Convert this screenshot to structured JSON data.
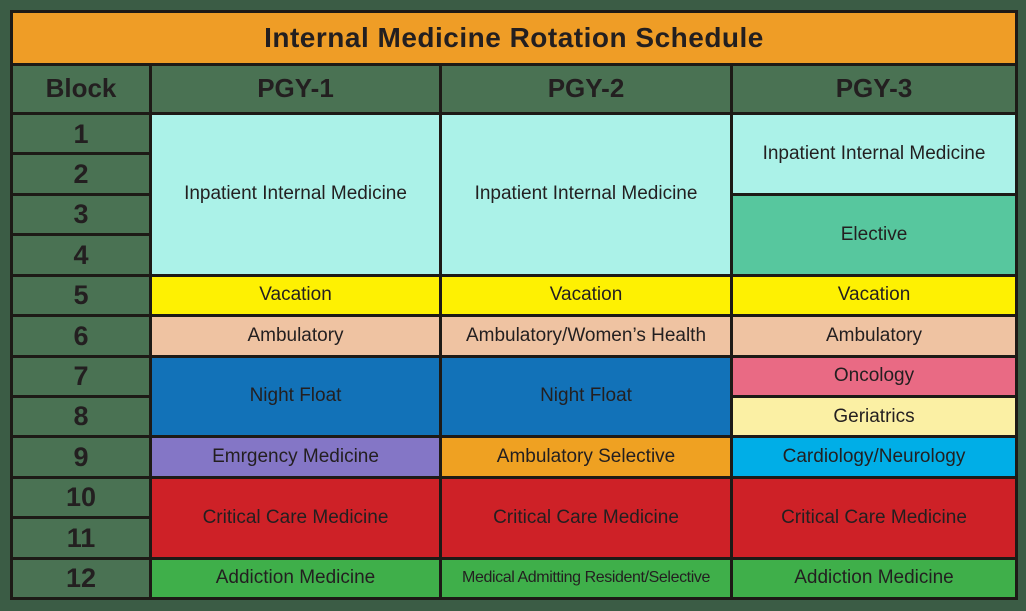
{
  "title": "Internal Medicine Rotation Schedule",
  "columns": {
    "block": "Block",
    "pgy1": "PGY-1",
    "pgy2": "PGY-2",
    "pgy3": "PGY-3"
  },
  "blocks": [
    "1",
    "2",
    "3",
    "4",
    "5",
    "6",
    "7",
    "8",
    "9",
    "10",
    "11",
    "12"
  ],
  "colors": {
    "background": "#3B5C45",
    "grid_line": "#1D1A16",
    "title_bar": "#EF9D26",
    "header_green": "#4A7253",
    "text": "#231F20"
  },
  "schedule": {
    "pgy1": [
      {
        "label": "Inpatient Internal Medicine",
        "blocks": "1-4",
        "color": "#ABF2E8"
      },
      {
        "label": "Vacation",
        "blocks": "5",
        "color": "#FEF102"
      },
      {
        "label": "Ambulatory",
        "blocks": "6",
        "color": "#EFC3A2"
      },
      {
        "label": "Night Float",
        "blocks": "7-8",
        "color": "#1272B8"
      },
      {
        "label": "Emrgency Medicine",
        "blocks": "9",
        "color": "#8476C6"
      },
      {
        "label": "Critical Care Medicine",
        "blocks": "10-11",
        "color": "#CE2127"
      },
      {
        "label": "Addiction Medicine",
        "blocks": "12",
        "color": "#3FAF4A"
      }
    ],
    "pgy2": [
      {
        "label": "Inpatient Internal Medicine",
        "blocks": "1-4",
        "color": "#ABF2E8"
      },
      {
        "label": "Vacation",
        "blocks": "5",
        "color": "#FEF102"
      },
      {
        "label": "Ambulatory/Women’s Health",
        "blocks": "6",
        "color": "#EFC3A2"
      },
      {
        "label": "Night Float",
        "blocks": "7-8",
        "color": "#1272B8"
      },
      {
        "label": "Ambulatory Selective",
        "blocks": "9",
        "color": "#EFA122"
      },
      {
        "label": "Critical Care Medicine",
        "blocks": "10-11",
        "color": "#CE2127"
      },
      {
        "label": "Medical Admitting Resident/Selective",
        "blocks": "12",
        "color": "#3FAF4A"
      }
    ],
    "pgy3": [
      {
        "label": "Inpatient Internal Medicine",
        "blocks": "1-2",
        "color": "#ABF2E8"
      },
      {
        "label": "Elective",
        "blocks": "3-4",
        "color": "#57C79E"
      },
      {
        "label": "Vacation",
        "blocks": "5",
        "color": "#FEF102"
      },
      {
        "label": "Ambulatory",
        "blocks": "6",
        "color": "#EFC3A2"
      },
      {
        "label": "Oncology",
        "blocks": "7",
        "color": "#E96A84"
      },
      {
        "label": "Geriatrics",
        "blocks": "8",
        "color": "#FBF0A4"
      },
      {
        "label": "Cardiology/Neurology",
        "blocks": "9",
        "color": "#00AEE7"
      },
      {
        "label": "Critical Care Medicine",
        "blocks": "10-11",
        "color": "#CE2127"
      },
      {
        "label": "Addiction Medicine",
        "blocks": "12",
        "color": "#3FAF4A"
      }
    ]
  }
}
